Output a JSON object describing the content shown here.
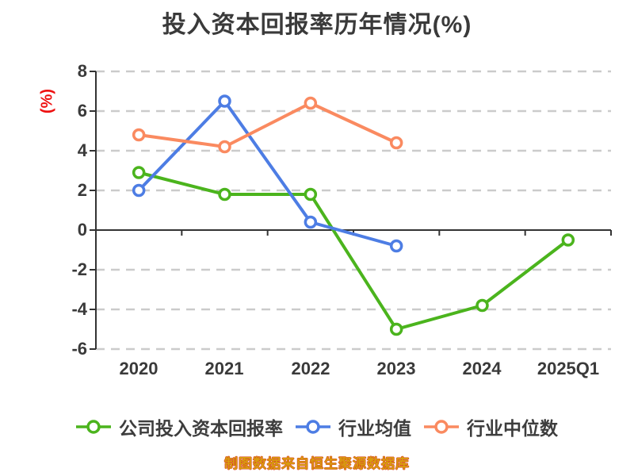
{
  "title": "投入资本回报率历年情况(%)",
  "caption": "制图数据来自恒生聚源数据库",
  "y_axis": {
    "unit": "(%)",
    "ticks": [
      "8",
      "6",
      "4",
      "2",
      "0",
      "-2",
      "-4",
      "-6"
    ]
  },
  "legend": {
    "items": [
      {
        "label": "公司投入资本回报率",
        "color": "#4bb41d"
      },
      {
        "label": "行业均值",
        "color": "#4d7de4"
      },
      {
        "label": "行业中位数",
        "color": "#fa8a60"
      }
    ]
  },
  "colors": {
    "axis": "#333333",
    "grid": "#cbcbcb",
    "text": "#3a3a3a",
    "unit_label": "#ee1010",
    "caption": "#d89c10"
  },
  "chart_data": {
    "type": "line",
    "title": "投入资本回报率历年情况(%)",
    "ylabel": "(%)",
    "categories": [
      "2020",
      "2021",
      "2022",
      "2023",
      "2024",
      "2025Q1"
    ],
    "series": [
      {
        "name": "公司投入资本回报率",
        "color": "#4bb41d",
        "values": [
          2.9,
          1.8,
          1.8,
          -5.0,
          -3.8,
          -0.5
        ]
      },
      {
        "name": "行业均值",
        "color": "#4d7de4",
        "values": [
          2.0,
          6.5,
          0.4,
          -0.8,
          null,
          null
        ]
      },
      {
        "name": "行业中位数",
        "color": "#fa8a60",
        "values": [
          4.8,
          4.2,
          6.4,
          4.4,
          null,
          null
        ]
      }
    ],
    "ylim": [
      -6,
      8
    ],
    "ytick_step": 2,
    "grid": "dashed-horizontal-lightgray",
    "marker": "circle-white-fill-colored-ring",
    "legend_position": "bottom",
    "source_note": "制图数据来自恒生聚源数据库"
  }
}
